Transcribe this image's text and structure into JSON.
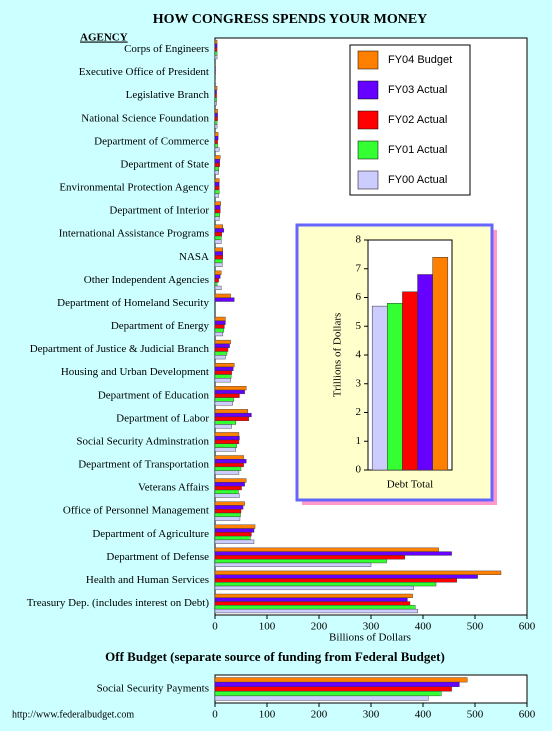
{
  "chart_data": [
    {
      "type": "hbar",
      "title": "HOW CONGRESS SPENDS YOUR MONEY",
      "y_label": "AGENCY",
      "x_label": "Billions of Dollars",
      "categories": [
        "Corps of Engineers",
        "Executive Office of President",
        "Legislative Branch",
        "National Science Foundation",
        "Department of Commerce",
        "Department of State",
        "Environmental Protection Agency",
        "Department of Interior",
        "International Assistance Programs",
        "NASA",
        "Other Independent Agencies",
        "Department of Homeland Security",
        "Department of Energy",
        "Department of Justice & Judicial Branch",
        "Housing and Urban Development",
        "Department of Education",
        "Department of Labor",
        "Social Security Adminstration",
        "Department of Transportation",
        "Veterans Affairs",
        "Office of Personnel Management",
        "Department of Agriculture",
        "Department of Defense",
        "Health and Human Services",
        "Treasury Dep. (includes interest on Debt)"
      ],
      "series": [
        {
          "name": "FY04 Budget",
          "color": "#ff8000",
          "values": [
            4,
            1,
            4,
            5,
            6,
            10,
            8,
            11,
            15,
            15,
            12,
            30,
            20,
            30,
            37,
            60,
            63,
            46,
            55,
            60,
            57,
            77,
            430,
            550,
            380
          ]
        },
        {
          "name": "FY03 Actual",
          "color": "#6600ff",
          "values": [
            4,
            1,
            3,
            5,
            6,
            9,
            8,
            10,
            17,
            15,
            10,
            37,
            20,
            28,
            35,
            57,
            70,
            47,
            60,
            57,
            54,
            75,
            455,
            505,
            370
          ]
        },
        {
          "name": "FY02 Actual",
          "color": "#ff0000",
          "values": [
            4,
            1,
            3,
            5,
            5,
            9,
            8,
            10,
            13,
            15,
            7,
            null,
            18,
            25,
            32,
            47,
            65,
            46,
            55,
            51,
            50,
            70,
            365,
            465,
            375
          ]
        },
        {
          "name": "FY01 Actual",
          "color": "#33ff33",
          "values": [
            4,
            1,
            3,
            4,
            5,
            7,
            8,
            9,
            12,
            14,
            4,
            null,
            17,
            23,
            31,
            36,
            40,
            42,
            50,
            45,
            49,
            68,
            330,
            425,
            385
          ]
        },
        {
          "name": "FY00 Actual",
          "color": "#ccccff",
          "values": [
            4,
            1,
            3,
            4,
            8,
            7,
            7,
            8,
            12,
            14,
            12,
            null,
            15,
            20,
            30,
            34,
            32,
            40,
            46,
            47,
            48,
            75,
            300,
            382,
            390
          ]
        }
      ],
      "xlim": [
        0,
        600
      ],
      "xticks": [
        0,
        100,
        200,
        300,
        400,
        500,
        600
      ],
      "legend": "upper right"
    },
    {
      "type": "bar",
      "categories": [
        "Debt Total"
      ],
      "y_label": "Trillions of Dollars",
      "series": [
        {
          "color": "#ccccff",
          "values": [
            5.7
          ]
        },
        {
          "color": "#33ff33",
          "values": [
            5.8
          ]
        },
        {
          "color": "#ff0000",
          "values": [
            6.2
          ]
        },
        {
          "color": "#6600ff",
          "values": [
            6.8
          ]
        },
        {
          "color": "#ff8000",
          "values": [
            7.4
          ]
        }
      ],
      "ylim": [
        0,
        8
      ],
      "yticks": [
        0,
        1,
        2,
        3,
        4,
        5,
        6,
        7,
        8
      ]
    },
    {
      "type": "hbar",
      "title": "Off Budget (separate source of funding from Federal Budget)",
      "categories": [
        "Social Security Payments"
      ],
      "series": [
        {
          "color": "#ff8000",
          "values": [
            485
          ]
        },
        {
          "color": "#6600ff",
          "values": [
            470
          ]
        },
        {
          "color": "#ff0000",
          "values": [
            455
          ]
        },
        {
          "color": "#33ff33",
          "values": [
            435
          ]
        },
        {
          "color": "#ccccff",
          "values": [
            410
          ]
        }
      ],
      "xlim": [
        0,
        600
      ],
      "xticks": [
        0,
        100,
        200,
        300,
        400,
        500,
        600
      ]
    }
  ],
  "footer": "http://www.federalbudget.com"
}
